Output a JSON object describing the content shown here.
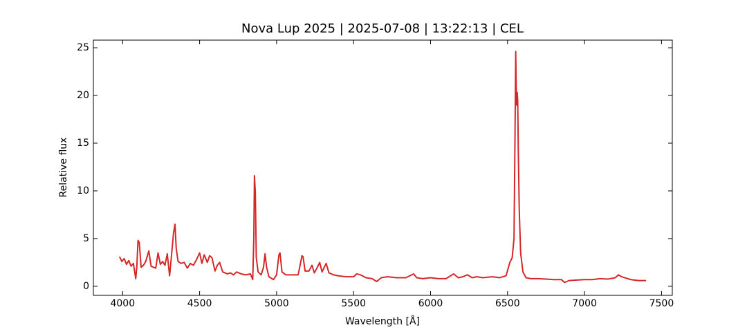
{
  "chart_data": {
    "type": "line",
    "title": "Nova Lup 2025 | 2025-07-08 | 13:22:13 | CEL",
    "x_label": "Wavelength [Å]",
    "y_label": "Relative flux",
    "xlim": [
      3810,
      7570
    ],
    "ylim": [
      -0.95,
      25.8
    ],
    "xticks": [
      4000,
      4500,
      5000,
      5500,
      6000,
      6500,
      7000,
      7500
    ],
    "yticks": [
      0,
      5,
      10,
      15,
      20,
      25
    ],
    "grid": false,
    "x": [
      3980,
      3995,
      4010,
      4025,
      4040,
      4055,
      4070,
      4085,
      4092,
      4100,
      4108,
      4120,
      4135,
      4150,
      4170,
      4185,
      4200,
      4215,
      4230,
      4245,
      4260,
      4275,
      4290,
      4305,
      4315,
      4330,
      4340,
      4348,
      4360,
      4380,
      4400,
      4420,
      4440,
      4460,
      4480,
      4500,
      4515,
      4530,
      4550,
      4565,
      4580,
      4600,
      4615,
      4630,
      4650,
      4680,
      4700,
      4720,
      4740,
      4770,
      4800,
      4830,
      4845,
      4852,
      4856,
      4862,
      4868,
      4880,
      4900,
      4915,
      4925,
      4935,
      4950,
      4980,
      5000,
      5015,
      5022,
      5035,
      5060,
      5100,
      5140,
      5165,
      5172,
      5185,
      5210,
      5230,
      5245,
      5265,
      5280,
      5295,
      5310,
      5322,
      5340,
      5370,
      5400,
      5450,
      5500,
      5520,
      5545,
      5580,
      5620,
      5650,
      5680,
      5720,
      5780,
      5840,
      5890,
      5910,
      5950,
      6000,
      6050,
      6100,
      6150,
      6180,
      6210,
      6240,
      6270,
      6300,
      6340,
      6400,
      6450,
      6490,
      6515,
      6530,
      6542,
      6548,
      6553,
      6556,
      6559,
      6563,
      6566,
      6570,
      6576,
      6585,
      6600,
      6620,
      6650,
      6700,
      6750,
      6800,
      6850,
      6870,
      6900,
      6950,
      7000,
      7050,
      7100,
      7150,
      7200,
      7220,
      7240,
      7260,
      7300,
      7350,
      7400
    ],
    "series": [
      {
        "name": "Nova Lup 2025",
        "color": "#d62728",
        "values": [
          3.1,
          2.6,
          2.9,
          2.3,
          2.7,
          2.1,
          2.4,
          0.8,
          2.0,
          4.8,
          4.6,
          2.0,
          2.2,
          2.6,
          3.7,
          2.1,
          2.0,
          1.9,
          3.5,
          2.3,
          2.6,
          2.2,
          3.4,
          1.1,
          2.8,
          5.5,
          6.5,
          4.0,
          2.6,
          2.4,
          2.5,
          1.9,
          2.4,
          2.2,
          2.8,
          3.5,
          2.4,
          3.3,
          2.5,
          3.2,
          3.0,
          1.6,
          2.2,
          2.5,
          1.5,
          1.3,
          1.4,
          1.2,
          1.5,
          1.3,
          1.2,
          1.3,
          0.7,
          5.0,
          11.6,
          9.8,
          3.0,
          1.5,
          1.2,
          2.0,
          3.4,
          2.0,
          1.0,
          0.7,
          1.2,
          3.3,
          3.5,
          1.5,
          1.2,
          1.2,
          1.2,
          3.2,
          3.1,
          1.6,
          1.6,
          2.2,
          1.4,
          2.0,
          2.5,
          1.5,
          2.0,
          2.4,
          1.4,
          1.2,
          1.1,
          1.0,
          1.0,
          1.3,
          1.2,
          0.9,
          0.8,
          0.5,
          0.9,
          1.0,
          0.9,
          0.9,
          1.3,
          0.9,
          0.8,
          0.9,
          0.8,
          0.8,
          1.3,
          0.9,
          1.0,
          1.2,
          0.9,
          1.0,
          0.9,
          1.0,
          0.9,
          1.1,
          2.5,
          3.0,
          5.0,
          15.0,
          24.6,
          21.0,
          19.0,
          20.3,
          19.5,
          14.0,
          8.0,
          3.5,
          1.5,
          0.9,
          0.8,
          0.8,
          0.75,
          0.7,
          0.7,
          0.4,
          0.6,
          0.65,
          0.7,
          0.7,
          0.8,
          0.75,
          0.9,
          1.2,
          1.0,
          0.9,
          0.7,
          0.6,
          0.6
        ]
      }
    ]
  }
}
